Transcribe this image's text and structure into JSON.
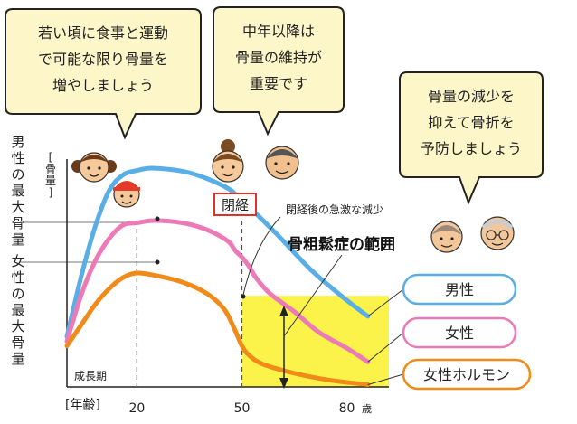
{
  "bubbles": [
    {
      "lines": [
        "若い頃に食事と運動",
        "で可能な限り骨量を",
        "増やしましょう"
      ]
    },
    {
      "lines": [
        "中年以降は",
        "骨量の維持が",
        "重要です"
      ]
    },
    {
      "lines": [
        "骨量の減少を",
        "抑えて骨折を",
        "予防しましょう"
      ]
    }
  ],
  "labels": {
    "male_max": "男性の最大骨量",
    "female_max": "女性の最大骨量",
    "menopause": "閉経",
    "rapid_decline": "閉経後の急激な減少",
    "osteoporosis_zone": "骨粗鬆症の範囲",
    "growth_period": "成長期"
  },
  "chart_data": {
    "type": "line",
    "ylabel": "[骨量]",
    "xlabel": "[年齢]",
    "x_unit": "歳",
    "x_ticks": [
      20,
      50,
      80
    ],
    "xlim": [
      0,
      92
    ],
    "ylim": [
      0,
      100
    ],
    "series": [
      {
        "name": "男性",
        "color": "#5aaee6",
        "x": [
          0,
          4,
          8,
          12,
          16,
          20,
          25,
          35,
          45,
          50,
          60,
          70,
          80,
          86
        ],
        "y": [
          22,
          48,
          70,
          86,
          93,
          95,
          96,
          94,
          88,
          82,
          67,
          51,
          38,
          31
        ]
      },
      {
        "name": "女性",
        "color": "#ec7ab7",
        "x": [
          0,
          4,
          8,
          12,
          16,
          20,
          25,
          33,
          40,
          46,
          48,
          50,
          52,
          54,
          58,
          65,
          72,
          80,
          86
        ],
        "y": [
          20,
          40,
          55,
          65,
          71,
          72,
          73,
          72,
          69,
          64,
          60,
          57,
          53,
          48,
          41,
          33,
          24,
          17,
          11
        ]
      },
      {
        "name": "女性ホルモン",
        "color": "#f08a18",
        "x": [
          0,
          4,
          8,
          12,
          16,
          20,
          25,
          33,
          40,
          45,
          48,
          50,
          52,
          56,
          65,
          75,
          86
        ],
        "y": [
          18,
          27,
          36,
          43,
          48,
          50,
          49,
          46,
          41,
          34,
          25,
          18,
          14,
          10,
          6,
          3,
          1
        ]
      }
    ],
    "osteoporosis_zone": {
      "x": [
        50,
        92
      ],
      "y": [
        0,
        40
      ],
      "color": "#fbf24a"
    },
    "dividers": [
      20,
      50
    ]
  }
}
